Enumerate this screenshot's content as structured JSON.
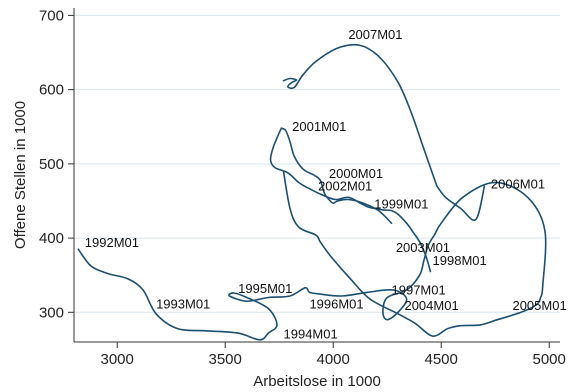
{
  "chart_data": {
    "type": "line",
    "title": "",
    "xlabel": "Arbeitslose in 1000",
    "ylabel": "Offene Stellen in 1000",
    "xlim": [
      2800,
      5050
    ],
    "ylim": [
      260,
      710
    ],
    "xticks": [
      3000,
      3500,
      4000,
      4500,
      5000
    ],
    "yticks": [
      300,
      400,
      500,
      600,
      700
    ],
    "grid": "horizontal",
    "colors": {
      "line": "#1b4f72",
      "grid": "#d6e6ee",
      "axis": "#333333",
      "text": "#222222"
    },
    "series": [
      {
        "x": [
          2820,
          2880,
          2960,
          3050,
          3120,
          3180,
          3280,
          3420,
          3560,
          3660,
          3700,
          3740,
          3700,
          3600,
          3540,
          3520,
          3600,
          3700,
          3800,
          3870,
          3890,
          3930,
          4040,
          4160,
          4280,
          4340,
          4300,
          4250,
          4230,
          4250,
          4340,
          4400,
          4420,
          4440,
          4470,
          4500,
          4600,
          4750,
          4900,
          4980,
          4970,
          4960,
          4940,
          4870,
          4760,
          4680,
          4590,
          4530,
          4460,
          4380,
          4300,
          4170,
          4080,
          3990,
          3940,
          3920,
          3840,
          3800,
          3770
        ],
        "y": [
          385,
          362,
          352,
          345,
          330,
          298,
          278,
          275,
          272,
          263,
          272,
          283,
          305,
          320,
          326,
          322,
          315,
          320,
          322,
          333,
          327,
          325,
          322,
          327,
          330,
          318,
          300,
          290,
          300,
          320,
          330,
          350,
          370,
          390,
          405,
          420,
          455,
          475,
          455,
          410,
          335,
          320,
          310,
          300,
          290,
          283,
          282,
          278,
          268,
          285,
          298,
          318,
          345,
          375,
          395,
          404,
          415,
          440,
          490
        ]
      },
      {
        "x": [
          3760,
          3740,
          3720,
          3710,
          3730,
          3790,
          3840,
          3880,
          3950,
          4010,
          4070,
          4120,
          4160,
          4190,
          4230,
          4270,
          4300,
          4340,
          4370,
          4400,
          4430,
          4450
        ],
        "y": [
          548,
          535,
          520,
          505,
          495,
          488,
          475,
          468,
          458,
          452,
          455,
          448,
          442,
          440,
          438,
          437,
          432,
          420,
          408,
          395,
          375,
          355
        ]
      },
      {
        "x": [
          3760,
          3780,
          3800,
          3820,
          3860,
          3910,
          3940,
          3960,
          3980,
          4000,
          4020,
          4070,
          4140,
          4210,
          4270
        ],
        "y": [
          548,
          545,
          530,
          510,
          493,
          485,
          478,
          460,
          452,
          447,
          450,
          452,
          447,
          437,
          420
        ]
      },
      {
        "x": [
          4480,
          4420,
          4360,
          4300,
          4210,
          4120,
          4020,
          3920,
          3860,
          3820,
          3790,
          3810,
          3830,
          3800,
          3770
        ],
        "y": [
          470,
          520,
          570,
          610,
          645,
          660,
          656,
          638,
          620,
          603,
          604,
          610,
          613,
          615,
          612
        ]
      },
      {
        "x": [
          4480,
          4520,
          4590,
          4660,
          4700
        ],
        "y": [
          470,
          455,
          440,
          425,
          470
        ]
      }
    ],
    "annotations": [
      {
        "text": "1992M01",
        "x": 2850,
        "y": 388
      },
      {
        "text": "1993M01",
        "x": 3180,
        "y": 305
      },
      {
        "text": "1994M01",
        "x": 3770,
        "y": 265
      },
      {
        "text": "1995M01",
        "x": 3560,
        "y": 326
      },
      {
        "text": "1996M01",
        "x": 3890,
        "y": 305
      },
      {
        "text": "1997M01",
        "x": 4270,
        "y": 324
      },
      {
        "text": "1998M01",
        "x": 4460,
        "y": 364
      },
      {
        "text": "1999M01",
        "x": 4190,
        "y": 440
      },
      {
        "text": "2000M01",
        "x": 3980,
        "y": 481
      },
      {
        "text": "2001M01",
        "x": 3810,
        "y": 544
      },
      {
        "text": "2002M01",
        "x": 3930,
        "y": 464
      },
      {
        "text": "2003M01",
        "x": 4290,
        "y": 381
      },
      {
        "text": "2004M01",
        "x": 4330,
        "y": 303
      },
      {
        "text": "2005M01",
        "x": 4830,
        "y": 303
      },
      {
        "text": "2006M01",
        "x": 4730,
        "y": 467
      },
      {
        "text": "2007M01",
        "x": 4070,
        "y": 668
      }
    ]
  }
}
